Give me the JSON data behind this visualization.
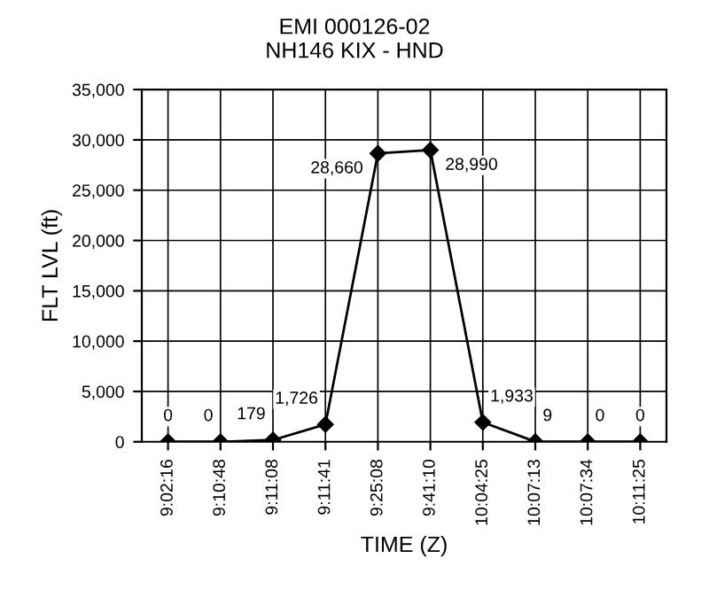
{
  "chart_data": {
    "type": "line",
    "title": "EMI 000126-02\nNH146 KIX - HND",
    "xlabel": "TIME (Z)",
    "ylabel": "FLT LVL (ft)",
    "categories": [
      "9:02:16",
      "9:10:48",
      "9:11:08",
      "9:11:41",
      "9:25:08",
      "9:41:10",
      "10:04:25",
      "10:07:13",
      "10:07:34",
      "10:11:25"
    ],
    "series": [
      {
        "color": "#000000",
        "values": [
          0,
          0,
          179,
          1726,
          28660,
          28990,
          1933,
          9,
          0,
          0
        ],
        "value_labels": [
          "0",
          "0",
          "179",
          "1,726",
          "28,660",
          "28,990",
          "1,933",
          "9",
          "0",
          "0"
        ]
      }
    ],
    "ylim": [
      0,
      35000
    ],
    "yticks": [
      {
        "value": 0,
        "label": "0"
      },
      {
        "value": 5000,
        "label": "5,000"
      },
      {
        "value": 10000,
        "label": "10,000"
      },
      {
        "value": 15000,
        "label": "15,000"
      },
      {
        "value": 20000,
        "label": "20,000"
      },
      {
        "value": 25000,
        "label": "25,000"
      },
      {
        "value": 30000,
        "label": "30,000"
      },
      {
        "value": 35000,
        "label": "35,000"
      }
    ],
    "grid": true,
    "marker": "diamond",
    "line_style": "solid"
  }
}
